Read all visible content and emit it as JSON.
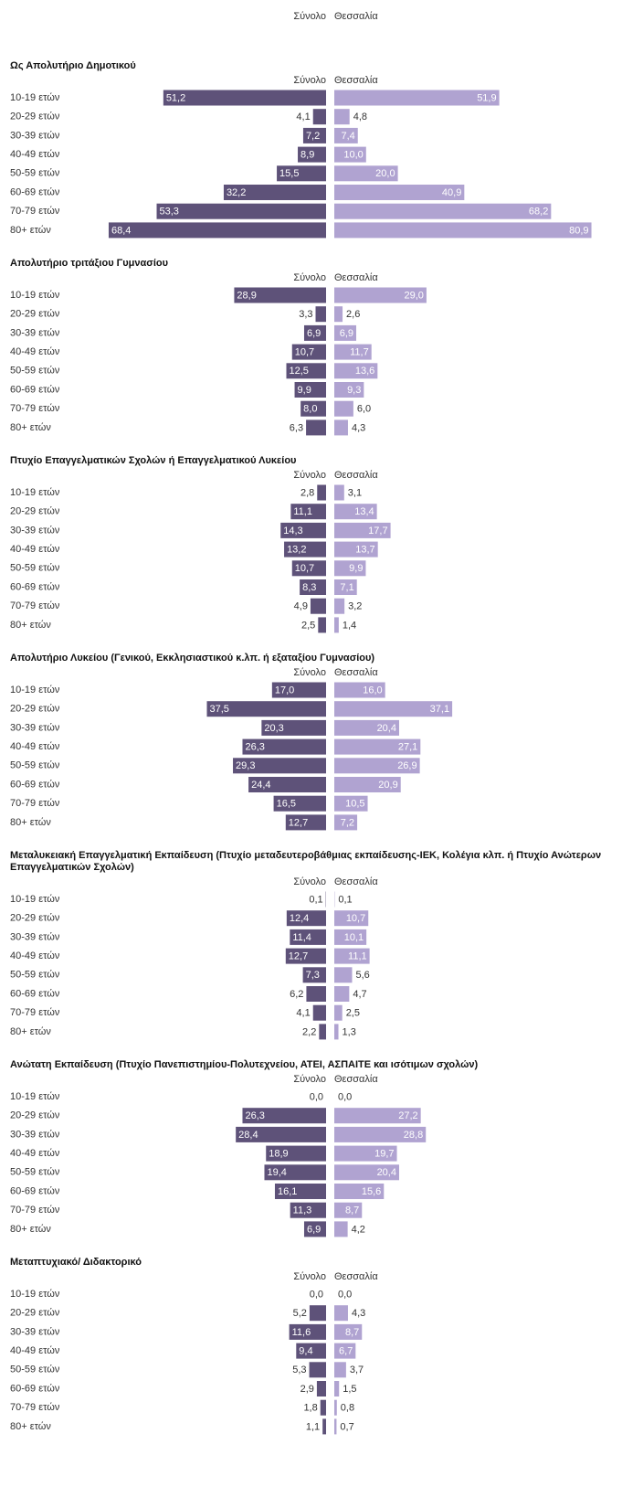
{
  "chart_data": [
    {
      "type": "butterfly",
      "title": "Ως Απολυτήριο Δημοτικού",
      "categories": [
        "10-19 ετών",
        "20-29 ετών",
        "30-39 ετών",
        "40-49 ετών",
        "50-59 ετών",
        "60-69 ετών",
        "70-79 ετών",
        "80+ ετών"
      ],
      "series": [
        {
          "name": "Σύνολο",
          "color": "#5e5279",
          "values": [
            51.2,
            4.1,
            7.2,
            8.9,
            15.5,
            32.2,
            53.3,
            68.4
          ],
          "value_labels": [
            "51,2",
            "4,1",
            "7,2",
            "8,9",
            "15,5",
            "32,2",
            "53,3",
            "68,4"
          ]
        },
        {
          "name": "Θεσσαλία",
          "color": "#b0a3d1",
          "values": [
            51.9,
            4.8,
            7.4,
            10.0,
            20.0,
            40.9,
            68.2,
            80.9
          ],
          "value_labels": [
            "51,9",
            "4,8",
            "7,4",
            "10,0",
            "20,0",
            "40,9",
            "68,2",
            "80,9"
          ]
        }
      ]
    },
    {
      "type": "butterfly",
      "title": "Απολυτήριο τριτάξιου Γυμνασίου",
      "categories": [
        "10-19 ετών",
        "20-29 ετών",
        "30-39 ετών",
        "40-49 ετών",
        "50-59 ετών",
        "60-69 ετών",
        "70-79 ετών",
        "80+ ετών"
      ],
      "series": [
        {
          "name": "Σύνολο",
          "color": "#5e5279",
          "values": [
            28.9,
            3.3,
            6.9,
            10.7,
            12.5,
            9.9,
            8.0,
            6.3
          ],
          "value_labels": [
            "28,9",
            "3,3",
            "6,9",
            "10,7",
            "12,5",
            "9,9",
            "8,0",
            "6,3"
          ]
        },
        {
          "name": "Θεσσαλία",
          "color": "#b0a3d1",
          "values": [
            29.0,
            2.6,
            6.9,
            11.7,
            13.6,
            9.3,
            6.0,
            4.3
          ],
          "value_labels": [
            "29,0",
            "2,6",
            "6,9",
            "11,7",
            "13,6",
            "9,3",
            "6,0",
            "4,3"
          ]
        }
      ]
    },
    {
      "type": "butterfly",
      "title": "Πτυχίο Επαγγελματικών Σχολών ή Επαγγελματικού Λυκείου",
      "categories": [
        "10-19 ετών",
        "20-29 ετών",
        "30-39 ετών",
        "40-49 ετών",
        "50-59 ετών",
        "60-69 ετών",
        "70-79 ετών",
        "80+ ετών"
      ],
      "series": [
        {
          "name": "Σύνολο",
          "color": "#5e5279",
          "values": [
            2.8,
            11.1,
            14.3,
            13.2,
            10.7,
            8.3,
            4.9,
            2.5
          ],
          "value_labels": [
            "2,8",
            "11,1",
            "14,3",
            "13,2",
            "10,7",
            "8,3",
            "4,9",
            "2,5"
          ]
        },
        {
          "name": "Θεσσαλία",
          "color": "#b0a3d1",
          "values": [
            3.1,
            13.4,
            17.7,
            13.7,
            9.9,
            7.1,
            3.2,
            1.4
          ],
          "value_labels": [
            "3,1",
            "13,4",
            "17,7",
            "13,7",
            "9,9",
            "7,1",
            "3,2",
            "1,4"
          ]
        }
      ]
    },
    {
      "type": "butterfly",
      "title": "Απολυτήριο Λυκείου (Γενικού, Εκκλησιαστικού κ.λπ. ή εξαταξίου Γυμνασίου)",
      "categories": [
        "10-19 ετών",
        "20-29 ετών",
        "30-39 ετών",
        "40-49 ετών",
        "50-59 ετών",
        "60-69 ετών",
        "70-79 ετών",
        "80+ ετών"
      ],
      "series": [
        {
          "name": "Σύνολο",
          "color": "#5e5279",
          "values": [
            17.0,
            37.5,
            20.3,
            26.3,
            29.3,
            24.4,
            16.5,
            12.7
          ],
          "value_labels": [
            "17,0",
            "37,5",
            "20,3",
            "26,3",
            "29,3",
            "24,4",
            "16,5",
            "12,7"
          ]
        },
        {
          "name": "Θεσσαλία",
          "color": "#b0a3d1",
          "values": [
            16.0,
            37.1,
            20.4,
            27.1,
            26.9,
            20.9,
            10.5,
            7.2
          ],
          "value_labels": [
            "16,0",
            "37,1",
            "20,4",
            "27,1",
            "26,9",
            "20,9",
            "10,5",
            "7,2"
          ]
        }
      ]
    },
    {
      "type": "butterfly",
      "title": "Μεταλυκειακή Επαγγελματική Εκπαίδευση (Πτυχίο μεταδευτεροβάθμιας εκπαίδευσης-ΙΕΚ, Κολέγια κλπ. ή Πτυχίο Ανώτερων Επαγγελματικών Σχολών)",
      "categories": [
        "10-19 ετών",
        "20-29 ετών",
        "30-39 ετών",
        "40-49 ετών",
        "50-59 ετών",
        "60-69 ετών",
        "70-79 ετών",
        "80+ ετών"
      ],
      "series": [
        {
          "name": "Σύνολο",
          "color": "#5e5279",
          "values": [
            0.1,
            12.4,
            11.4,
            12.7,
            7.3,
            6.2,
            4.1,
            2.2
          ],
          "value_labels": [
            "0,1",
            "12,4",
            "11,4",
            "12,7",
            "7,3",
            "6,2",
            "4,1",
            "2,2"
          ]
        },
        {
          "name": "Θεσσαλία",
          "color": "#b0a3d1",
          "values": [
            0.1,
            10.7,
            10.1,
            11.1,
            5.6,
            4.7,
            2.5,
            1.3
          ],
          "value_labels": [
            "0,1",
            "10,7",
            "10,1",
            "11,1",
            "5,6",
            "4,7",
            "2,5",
            "1,3"
          ]
        }
      ]
    },
    {
      "type": "butterfly",
      "title": "Ανώτατη Εκπαίδευση (Πτυχίο Πανεπιστημίου-Πολυτεχνείου, ΑΤΕΙ, ΑΣΠΑΙΤΕ και ισότιμων σχολών)",
      "categories": [
        "10-19 ετών",
        "20-29 ετών",
        "30-39 ετών",
        "40-49 ετών",
        "50-59 ετών",
        "60-69 ετών",
        "70-79 ετών",
        "80+ ετών"
      ],
      "series": [
        {
          "name": "Σύνολο",
          "color": "#5e5279",
          "values": [
            0.0,
            26.3,
            28.4,
            18.9,
            19.4,
            16.1,
            11.3,
            6.9
          ],
          "value_labels": [
            "0,0",
            "26,3",
            "28,4",
            "18,9",
            "19,4",
            "16,1",
            "11,3",
            "6,9"
          ]
        },
        {
          "name": "Θεσσαλία",
          "color": "#b0a3d1",
          "values": [
            0.0,
            27.2,
            28.8,
            19.7,
            20.4,
            15.6,
            8.7,
            4.2
          ],
          "value_labels": [
            "0,0",
            "27,2",
            "28,8",
            "19,7",
            "20,4",
            "15,6",
            "8,7",
            "4,2"
          ]
        }
      ]
    },
    {
      "type": "butterfly",
      "title": "Μεταπτυχιακό/ Διδακτορικό",
      "categories": [
        "10-19 ετών",
        "20-29 ετών",
        "30-39 ετών",
        "40-49 ετών",
        "50-59 ετών",
        "60-69 ετών",
        "70-79 ετών",
        "80+ ετών"
      ],
      "series": [
        {
          "name": "Σύνολο",
          "color": "#5e5279",
          "values": [
            0.0,
            5.2,
            11.6,
            9.4,
            5.3,
            2.9,
            1.8,
            1.1
          ],
          "value_labels": [
            "0,0",
            "5,2",
            "11,6",
            "9,4",
            "5,3",
            "2,9",
            "1,8",
            "1,1"
          ]
        },
        {
          "name": "Θεσσαλία",
          "color": "#b0a3d1",
          "values": [
            0.0,
            4.3,
            8.7,
            6.7,
            3.7,
            1.5,
            0.8,
            0.7
          ],
          "value_labels": [
            "0,0",
            "4,3",
            "8,7",
            "6,7",
            "3,7",
            "1,5",
            "0,8",
            "0,7"
          ]
        }
      ]
    }
  ]
}
